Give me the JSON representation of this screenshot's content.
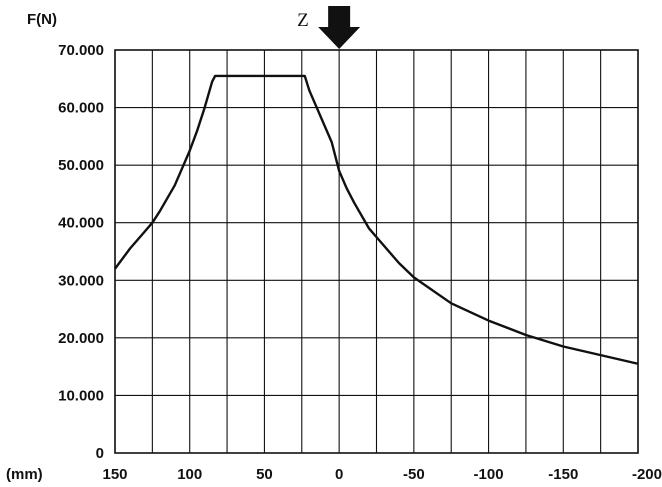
{
  "chart_data": {
    "type": "line",
    "title": "",
    "ylabel": "F(N)",
    "xlabel": "(mm)",
    "x_reversed": true,
    "xlim": [
      150,
      -200
    ],
    "ylim": [
      0,
      70
    ],
    "grid": true,
    "legend": "none",
    "x_tick_values": [
      150,
      125,
      100,
      75,
      50,
      25,
      0,
      -25,
      -50,
      -75,
      -100,
      -125,
      -150,
      -175,
      -200
    ],
    "x_tick_labels": [
      {
        "value": 150,
        "label": "150"
      },
      {
        "value": 100,
        "label": "100"
      },
      {
        "value": 50,
        "label": "50"
      },
      {
        "value": 0,
        "label": "0"
      },
      {
        "value": -50,
        "label": "-50"
      },
      {
        "value": -100,
        "label": "-100"
      },
      {
        "value": -150,
        "label": "-150"
      },
      {
        "value": -200,
        "label": "-200"
      }
    ],
    "y_ticks": [
      {
        "value": 0,
        "label": "0"
      },
      {
        "value": 10,
        "label": "10.000"
      },
      {
        "value": 20,
        "label": "20.000"
      },
      {
        "value": 30,
        "label": "30.000"
      },
      {
        "value": 40,
        "label": "40.000"
      },
      {
        "value": 50,
        "label": "50.000"
      },
      {
        "value": 60,
        "label": "60.000"
      },
      {
        "value": 70,
        "label": "70.000"
      }
    ],
    "marker": {
      "label": "Z",
      "x": 0,
      "icon": "down-arrow-icon"
    },
    "series": [
      {
        "color": "#111111",
        "x": [
          150,
          140,
          130,
          125,
          120,
          110,
          100,
          95,
          90,
          85,
          83,
          75,
          50,
          30,
          25,
          23,
          20,
          15,
          10,
          5,
          0,
          -5,
          -10,
          -20,
          -25,
          -40,
          -50,
          -75,
          -100,
          -125,
          -150,
          -175,
          -200
        ],
        "y": [
          32,
          35.5,
          38.5,
          40,
          42,
          46.5,
          52.5,
          56,
          60,
          64.5,
          65.5,
          65.5,
          65.5,
          65.5,
          65.5,
          65.5,
          63,
          60,
          57,
          54,
          49,
          46,
          43.5,
          39,
          37.5,
          33,
          30.5,
          26,
          23,
          20.5,
          18.5,
          17,
          15.5
        ]
      }
    ]
  }
}
